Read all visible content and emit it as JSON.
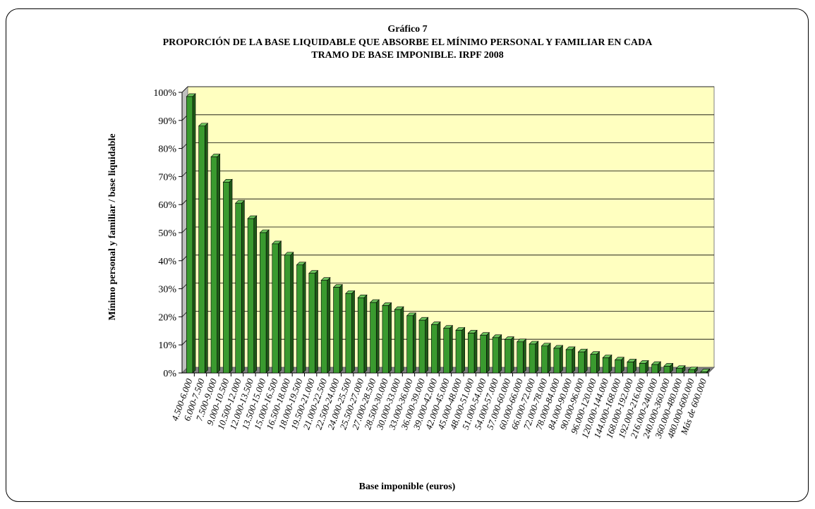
{
  "chart_data": {
    "type": "bar",
    "title_line1": "Gráfico 7",
    "title_line2": "PROPORCIÓN DE LA BASE LIQUIDABLE QUE ABSORBE EL MÍNIMO PERSONAL Y FAMILIAR EN CADA",
    "title_line3": "TRAMO DE BASE IMPONIBLE. IRPF 2008",
    "xlabel": "Base imponible (euros)",
    "ylabel": "Mínimo personal y familiar / base liquidable",
    "ylim": [
      0,
      100
    ],
    "y_ticks": [
      "0%",
      "10%",
      "20%",
      "30%",
      "40%",
      "50%",
      "60%",
      "70%",
      "80%",
      "90%",
      "100%"
    ],
    "grid": true,
    "colors": {
      "bar": "#3a9a2f",
      "bar_side": "#1f5a18",
      "bar_top": "#6cc35c",
      "plot_bg": "#ffffc0",
      "floor": "#808080"
    },
    "categories": [
      "4.500-6.000",
      "6.000-7.500",
      "7.500-9.000",
      "9.000-10.500",
      "10.500-12.000",
      "12.000-13.500",
      "13.500-15.000",
      "15.000-16.500",
      "16.500-18.000",
      "18.000-19.500",
      "19.500-21.000",
      "21.000-22.500",
      "22.500-24.000",
      "24.000-25.500",
      "25.500-27.000",
      "27.000-28.500",
      "28.500-30.000",
      "30.000-33.000",
      "33.000-36.000",
      "36.000-39.000",
      "39.000-42.000",
      "42.000-45.000",
      "45.000-48.000",
      "48.000-51.000",
      "51.000-54.000",
      "54.000-57.000",
      "57.000-60.000",
      "60.000-66.000",
      "66.000-72.000",
      "72.000-78.000",
      "78.000-84.000",
      "84.000-90.000",
      "90.000-96.000",
      "96.000-120.000",
      "120.000-144.000",
      "144.000-168.000",
      "168.000-192.000",
      "192.000-216.000",
      "216.000-240.000",
      "240.000-360.000",
      "360.000-480.000",
      "480.000-600.000",
      "Más de 600.000"
    ],
    "values": [
      98.5,
      88,
      77,
      68,
      60.5,
      55,
      50,
      46,
      42,
      38.5,
      35.5,
      33,
      30.5,
      28.3,
      26.8,
      25.1,
      24,
      22.6,
      20.4,
      18.8,
      17.2,
      15.9,
      15.2,
      14.2,
      13.4,
      12.6,
      11.9,
      11.1,
      10.3,
      9.6,
      8.8,
      8.3,
      7.5,
      6.6,
      5.4,
      4.6,
      3.9,
      3.4,
      3.0,
      2.4,
      1.6,
      1.1,
      0.4
    ]
  }
}
